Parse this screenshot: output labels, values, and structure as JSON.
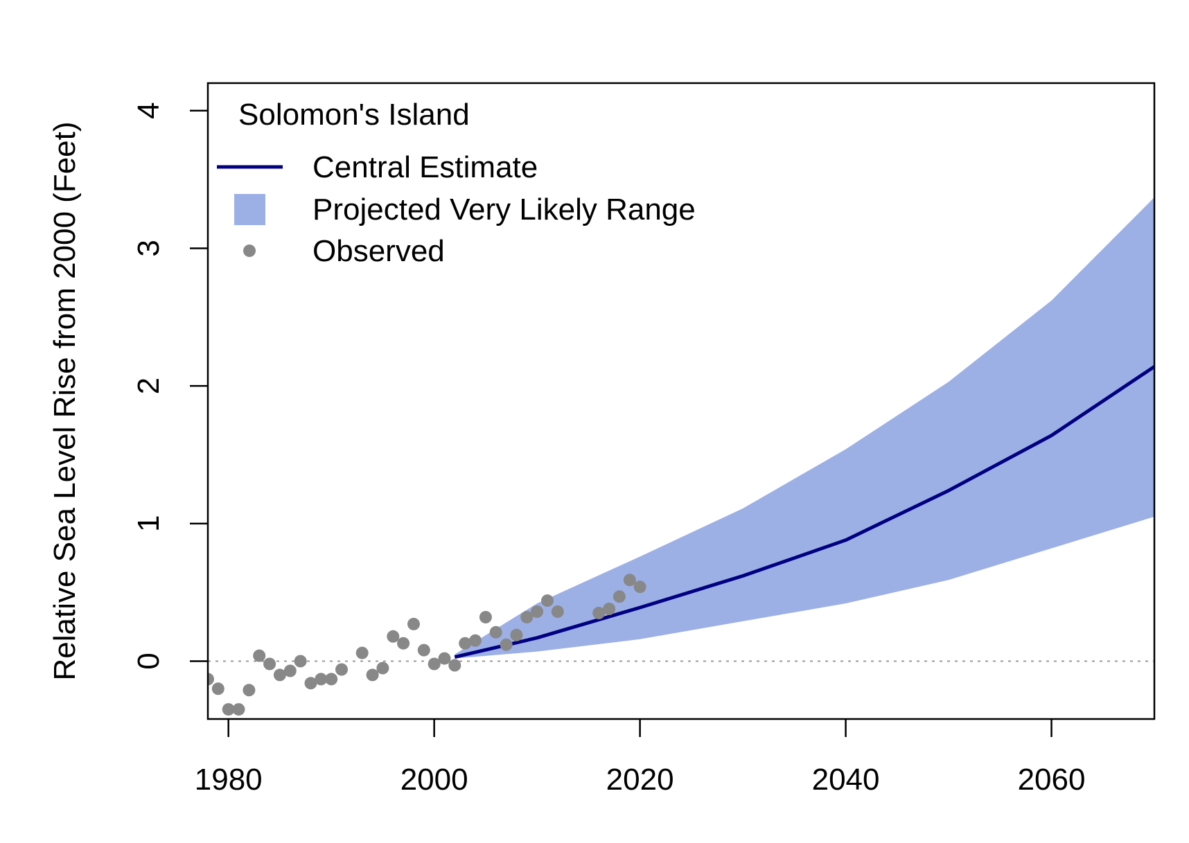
{
  "chart_data": {
    "type": "line",
    "title": "",
    "xlabel": "",
    "ylabel": "Relative Sea Level Rise from 2000 (Feet)",
    "xlim": [
      1978,
      2070
    ],
    "ylim": [
      -0.42,
      4.2
    ],
    "x_ticks": [
      1980,
      2000,
      2020,
      2040,
      2060
    ],
    "x_tick_labels": [
      "1980",
      "2000",
      "2020",
      "2040",
      "2060"
    ],
    "y_ticks": [
      0,
      1,
      2,
      3,
      4
    ],
    "y_tick_labels": [
      "0",
      "1",
      "2",
      "3",
      "4"
    ],
    "grid": false,
    "reference_line": {
      "y": 0,
      "style": "dotted",
      "color": "#999999"
    },
    "legend": {
      "placement": "top-left",
      "title": "Solomon's Island",
      "entries": [
        {
          "label": "Central Estimate",
          "kind": "line",
          "color": "#000080"
        },
        {
          "label": "Projected Very Likely Range",
          "kind": "area",
          "color": "#9db0e6"
        },
        {
          "label": "Observed",
          "kind": "point",
          "color": "#888888"
        }
      ]
    },
    "series": [
      {
        "name": "Central Estimate",
        "kind": "line",
        "color": "#000080",
        "x": [
          2002,
          2010,
          2020,
          2030,
          2040,
          2050,
          2060,
          2070
        ],
        "y": [
          0.03,
          0.17,
          0.39,
          0.62,
          0.88,
          1.24,
          1.64,
          2.14
        ]
      },
      {
        "name": "Projected Very Likely Range",
        "kind": "area",
        "color": "#9db0e6",
        "x": [
          2002,
          2010,
          2020,
          2030,
          2040,
          2050,
          2060,
          2070
        ],
        "lower": [
          0.02,
          0.07,
          0.16,
          0.29,
          0.42,
          0.59,
          0.82,
          1.05
        ],
        "upper": [
          0.05,
          0.42,
          0.76,
          1.11,
          1.54,
          2.03,
          2.62,
          3.37
        ]
      },
      {
        "name": "Observed",
        "kind": "scatter",
        "color": "#888888",
        "points": [
          [
            1978,
            -0.13
          ],
          [
            1979,
            -0.2
          ],
          [
            1980,
            -0.35
          ],
          [
            1981,
            -0.35
          ],
          [
            1982,
            -0.21
          ],
          [
            1983,
            0.04
          ],
          [
            1984,
            -0.02
          ],
          [
            1985,
            -0.1
          ],
          [
            1986,
            -0.07
          ],
          [
            1987,
            0.0
          ],
          [
            1988,
            -0.16
          ],
          [
            1989,
            -0.13
          ],
          [
            1990,
            -0.13
          ],
          [
            1991,
            -0.06
          ],
          [
            1993,
            0.06
          ],
          [
            1994,
            -0.1
          ],
          [
            1995,
            -0.05
          ],
          [
            1996,
            0.18
          ],
          [
            1997,
            0.13
          ],
          [
            1998,
            0.27
          ],
          [
            1999,
            0.08
          ],
          [
            2000,
            -0.02
          ],
          [
            2001,
            0.02
          ],
          [
            2002,
            -0.03
          ],
          [
            2003,
            0.13
          ],
          [
            2004,
            0.15
          ],
          [
            2005,
            0.32
          ],
          [
            2006,
            0.21
          ],
          [
            2007,
            0.12
          ],
          [
            2008,
            0.19
          ],
          [
            2009,
            0.32
          ],
          [
            2010,
            0.36
          ],
          [
            2011,
            0.44
          ],
          [
            2012,
            0.36
          ],
          [
            2016,
            0.35
          ],
          [
            2017,
            0.38
          ],
          [
            2018,
            0.47
          ],
          [
            2019,
            0.59
          ],
          [
            2020,
            0.54
          ]
        ]
      }
    ]
  }
}
